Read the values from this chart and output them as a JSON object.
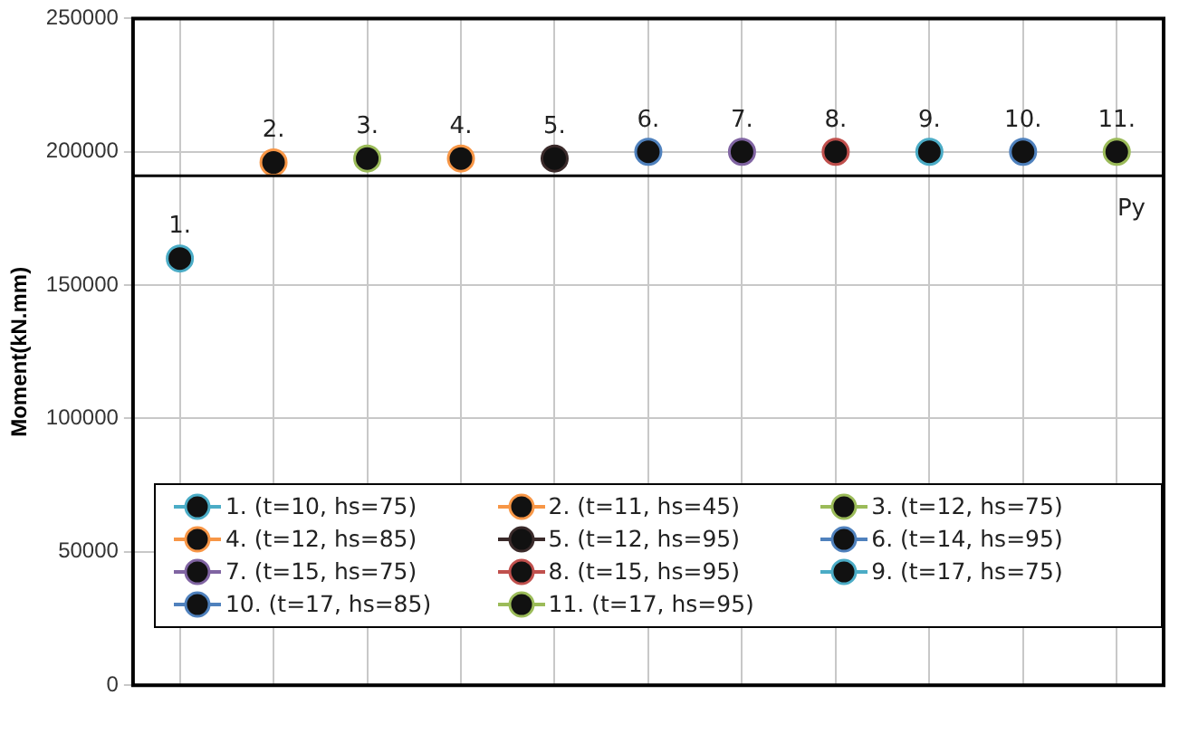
{
  "chart_data": {
    "type": "scatter",
    "ylabel": "Moment(kN.mm)",
    "categories": [
      null,
      null,
      null,
      null,
      null,
      null,
      null,
      null,
      null,
      null,
      null
    ],
    "ylim": [
      0,
      250000
    ],
    "yticks": [
      0,
      50000,
      100000,
      150000,
      200000,
      250000
    ],
    "grid": true,
    "legend": "bottom",
    "marker": "circle",
    "series": [
      {
        "name": "1. (t=10, hs=75)",
        "color": "#4bacc6",
        "values": [
          160000,
          null,
          null,
          null,
          null,
          null,
          null,
          null,
          null,
          null,
          null
        ]
      },
      {
        "name": "2. (t=11, hs=45)",
        "color": "#f79646",
        "values": [
          null,
          196000,
          null,
          null,
          null,
          null,
          null,
          null,
          null,
          null,
          null
        ]
      },
      {
        "name": "3. (t=12, hs=75)",
        "color": "#9bbb59",
        "values": [
          null,
          null,
          197500,
          null,
          null,
          null,
          null,
          null,
          null,
          null,
          null
        ]
      },
      {
        "name": "4. (t=12, hs=85)",
        "color": "#f79646",
        "values": [
          null,
          null,
          null,
          197500,
          null,
          null,
          null,
          null,
          null,
          null,
          null
        ]
      },
      {
        "name": "5. (t=12, hs=95)",
        "color": "#3a2a2a",
        "values": [
          null,
          null,
          null,
          null,
          197500,
          null,
          null,
          null,
          null,
          null,
          null
        ]
      },
      {
        "name": "6. (t=14, hs=95)",
        "color": "#4f81bd",
        "values": [
          null,
          null,
          null,
          null,
          null,
          200000,
          null,
          null,
          null,
          null,
          null
        ]
      },
      {
        "name": "7. (t=15, hs=75)",
        "color": "#8064a2",
        "values": [
          null,
          null,
          null,
          null,
          null,
          null,
          200000,
          null,
          null,
          null,
          null
        ]
      },
      {
        "name": "8. (t=15, hs=95)",
        "color": "#c0504d",
        "values": [
          null,
          null,
          null,
          null,
          null,
          null,
          null,
          200000,
          null,
          null,
          null
        ]
      },
      {
        "name": "9. (t=17, hs=75)",
        "color": "#4bacc6",
        "values": [
          null,
          null,
          null,
          null,
          null,
          null,
          null,
          null,
          200000,
          null,
          null
        ]
      },
      {
        "name": "10. (t=17, hs=85)",
        "color": "#4f81bd",
        "values": [
          null,
          null,
          null,
          null,
          null,
          null,
          null,
          null,
          null,
          200000,
          null
        ]
      },
      {
        "name": "11. (t=17, hs=95)",
        "color": "#9bbb59",
        "values": [
          null,
          null,
          null,
          null,
          null,
          null,
          null,
          null,
          null,
          null,
          200000
        ]
      }
    ],
    "ref_lines": [
      {
        "axis": "y",
        "value": 191000,
        "label": "Py",
        "color": "#000000"
      }
    ],
    "annotations": [
      {
        "text": "1.",
        "y": 160000
      },
      {
        "text": "2.",
        "y": 196000
      },
      {
        "text": "3.",
        "y": 197500
      },
      {
        "text": "4.",
        "y": 197500
      },
      {
        "text": "5.",
        "y": 197500
      },
      {
        "text": "6.",
        "y": 200000
      },
      {
        "text": "7.",
        "y": 200000
      },
      {
        "text": "8.",
        "y": 200000
      },
      {
        "text": "9.",
        "y": 200000
      },
      {
        "text": "10.",
        "y": 200000
      },
      {
        "text": "11.",
        "y": 200000
      }
    ]
  }
}
